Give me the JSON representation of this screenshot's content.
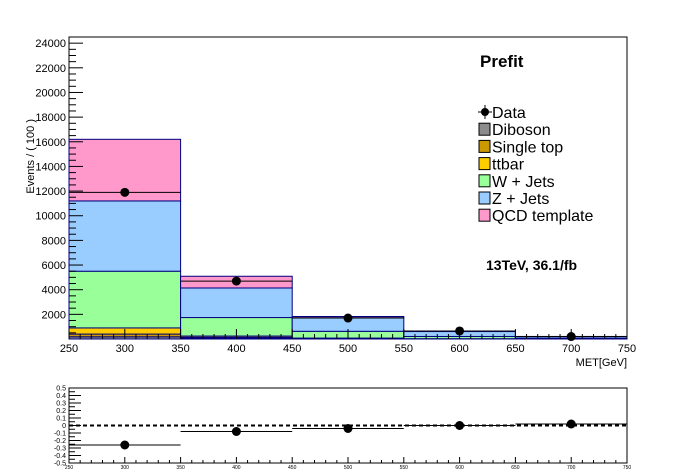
{
  "chart_data": [
    {
      "type": "bar",
      "stacked": true,
      "title": "Prefit",
      "annotation": "13TeV, 36.1/fb",
      "xlabel": "MET[GeV]",
      "ylabel": "Events / ( 100 )",
      "xlim": [
        250,
        750
      ],
      "ylim": [
        0,
        24500
      ],
      "x_bin_edges": [
        250,
        350,
        450,
        550,
        650,
        750
      ],
      "x_ticks": [
        "250",
        "300",
        "350",
        "400",
        "450",
        "500",
        "550",
        "600",
        "650",
        "700",
        "750"
      ],
      "y_ticks": [
        "2000",
        "4000",
        "6000",
        "8000",
        "10000",
        "12000",
        "14000",
        "16000",
        "18000",
        "20000",
        "22000",
        "24000"
      ],
      "legend_position": "top-right",
      "series": [
        {
          "name": "Diboson",
          "color": "#8c8c8c",
          "values": [
            180,
            60,
            20,
            8,
            2
          ]
        },
        {
          "name": "Single top",
          "color": "#cc9900",
          "values": [
            220,
            80,
            25,
            8,
            2
          ]
        },
        {
          "name": "ttbar",
          "color": "#ffcc00",
          "values": [
            500,
            100,
            30,
            10,
            3
          ]
        },
        {
          "name": "W + Jets",
          "color": "#99ff99",
          "values": [
            4600,
            1500,
            550,
            180,
            60
          ]
        },
        {
          "name": "Z + Jets",
          "color": "#99ccff",
          "values": [
            5700,
            2400,
            1100,
            400,
            130
          ]
        },
        {
          "name": "QCD template",
          "color": "#ff99cc",
          "values": [
            5000,
            950,
            100,
            30,
            10
          ]
        }
      ],
      "data": {
        "name": "Data",
        "x": [
          300,
          400,
          500,
          600,
          700
        ],
        "y": [
          11900,
          4700,
          1700,
          650,
          200
        ]
      }
    },
    {
      "type": "scatter",
      "xlim": [
        250,
        750
      ],
      "ylim": [
        -0.5,
        0.5
      ],
      "y_ticks": [
        "-0.5",
        "-0.4",
        "-0.3",
        "-0.2",
        "-0.1",
        "0",
        "0.1",
        "0.2",
        "0.3",
        "0.4",
        "0.5"
      ],
      "x_ticks": [
        "250",
        "300",
        "350",
        "400",
        "450",
        "500",
        "550",
        "600",
        "650",
        "700",
        "750"
      ],
      "reference_line": 0,
      "points": [
        {
          "x": 300,
          "y": -0.26,
          "xerr": 50
        },
        {
          "x": 400,
          "y": -0.08,
          "xerr": 50
        },
        {
          "x": 500,
          "y": -0.04,
          "xerr": 50
        },
        {
          "x": 600,
          "y": 0.0,
          "xerr": 50
        },
        {
          "x": 700,
          "y": 0.02,
          "xerr": 50
        }
      ]
    }
  ]
}
